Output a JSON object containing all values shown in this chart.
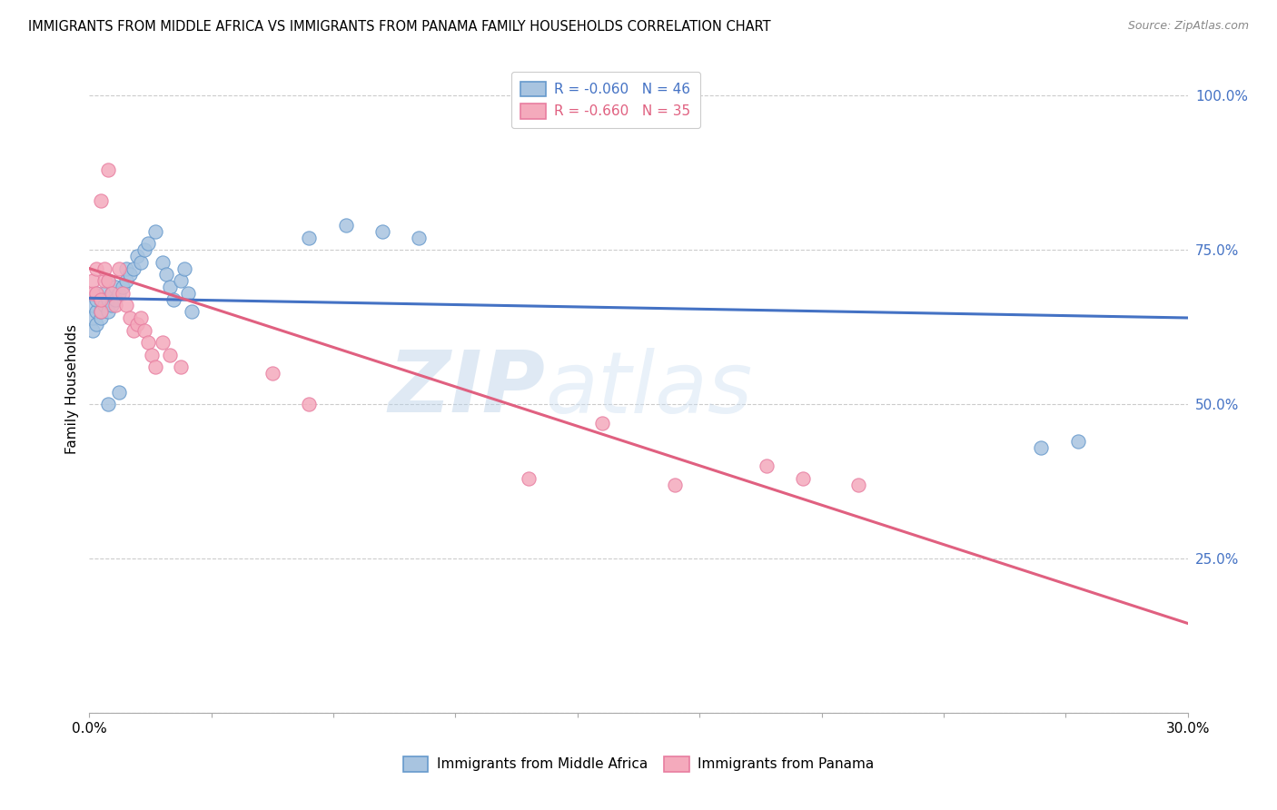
{
  "title": "IMMIGRANTS FROM MIDDLE AFRICA VS IMMIGRANTS FROM PANAMA FAMILY HOUSEHOLDS CORRELATION CHART",
  "source": "Source: ZipAtlas.com",
  "ylabel": "Family Households",
  "right_yticks": [
    0.0,
    0.25,
    0.5,
    0.75,
    1.0
  ],
  "right_yticklabels": [
    "",
    "25.0%",
    "50.0%",
    "75.0%",
    "100.0%"
  ],
  "xlim": [
    0.0,
    0.3
  ],
  "ylim": [
    0.0,
    1.05
  ],
  "blue_R": -0.06,
  "blue_N": 46,
  "pink_R": -0.66,
  "pink_N": 35,
  "blue_color": "#A8C4E0",
  "pink_color": "#F4AABC",
  "blue_edge_color": "#6699CC",
  "pink_edge_color": "#E87DA0",
  "blue_line_color": "#4472C4",
  "pink_line_color": "#E06080",
  "legend_blue_label": "Immigrants from Middle Africa",
  "legend_pink_label": "Immigrants from Panama",
  "watermark_zip": "ZIP",
  "watermark_atlas": "atlas",
  "blue_scatter_x": [
    0.001,
    0.001,
    0.001,
    0.002,
    0.002,
    0.002,
    0.002,
    0.003,
    0.003,
    0.003,
    0.004,
    0.004,
    0.005,
    0.005,
    0.005,
    0.006,
    0.006,
    0.007,
    0.007,
    0.008,
    0.009,
    0.01,
    0.01,
    0.011,
    0.012,
    0.013,
    0.014,
    0.015,
    0.016,
    0.018,
    0.02,
    0.021,
    0.022,
    0.023,
    0.025,
    0.026,
    0.027,
    0.028,
    0.06,
    0.07,
    0.08,
    0.09,
    0.26,
    0.27,
    0.005,
    0.008
  ],
  "blue_scatter_y": [
    0.62,
    0.64,
    0.66,
    0.63,
    0.65,
    0.67,
    0.68,
    0.64,
    0.65,
    0.67,
    0.66,
    0.68,
    0.65,
    0.67,
    0.7,
    0.66,
    0.68,
    0.67,
    0.69,
    0.68,
    0.69,
    0.7,
    0.72,
    0.71,
    0.72,
    0.74,
    0.73,
    0.75,
    0.76,
    0.78,
    0.73,
    0.71,
    0.69,
    0.67,
    0.7,
    0.72,
    0.68,
    0.65,
    0.77,
    0.79,
    0.78,
    0.77,
    0.43,
    0.44,
    0.5,
    0.52
  ],
  "pink_scatter_x": [
    0.001,
    0.001,
    0.002,
    0.002,
    0.003,
    0.003,
    0.003,
    0.004,
    0.004,
    0.005,
    0.005,
    0.006,
    0.007,
    0.008,
    0.009,
    0.01,
    0.011,
    0.012,
    0.013,
    0.014,
    0.015,
    0.016,
    0.017,
    0.018,
    0.02,
    0.022,
    0.025,
    0.05,
    0.06,
    0.12,
    0.14,
    0.16,
    0.185,
    0.195,
    0.21
  ],
  "pink_scatter_y": [
    0.68,
    0.7,
    0.68,
    0.72,
    0.65,
    0.67,
    0.83,
    0.7,
    0.72,
    0.88,
    0.7,
    0.68,
    0.66,
    0.72,
    0.68,
    0.66,
    0.64,
    0.62,
    0.63,
    0.64,
    0.62,
    0.6,
    0.58,
    0.56,
    0.6,
    0.58,
    0.56,
    0.55,
    0.5,
    0.38,
    0.47,
    0.37,
    0.4,
    0.38,
    0.37
  ],
  "blue_trend_x": [
    0.0,
    0.3
  ],
  "blue_trend_y": [
    0.672,
    0.64
  ],
  "pink_trend_x": [
    0.0,
    0.3
  ],
  "pink_trend_y": [
    0.72,
    0.145
  ]
}
